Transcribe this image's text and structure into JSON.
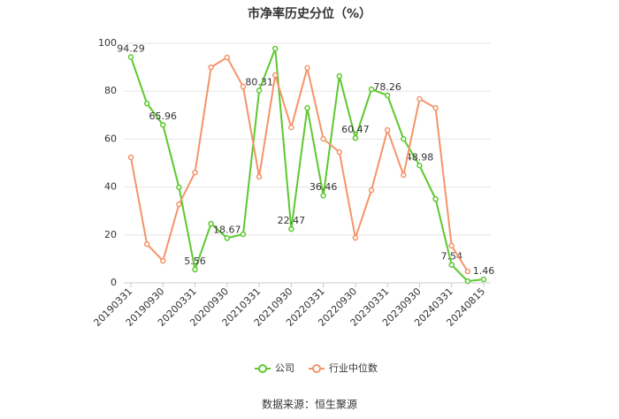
{
  "chart_data": {
    "type": "line",
    "title": "市净率历史分位（%）",
    "source": "数据来源：恒生聚源",
    "categories": [
      "20190331",
      null,
      "20190930",
      null,
      "20200331",
      null,
      "20200930",
      null,
      "20210331",
      null,
      "20210930",
      null,
      "20220331",
      null,
      "20220930",
      null,
      "20230331",
      null,
      "20230930",
      null,
      "20240331",
      null,
      "20240815"
    ],
    "series": [
      {
        "name": "公司",
        "color": "#5cc92e",
        "values": [
          94.29,
          74.9,
          65.96,
          39.9,
          5.56,
          24.7,
          18.67,
          20.3,
          80.31,
          97.8,
          22.47,
          73.0,
          36.46,
          86.3,
          60.47,
          80.8,
          78.26,
          60.1,
          48.98,
          35.0,
          7.54,
          0.7,
          1.46
        ],
        "value_labels": [
          "94.29",
          null,
          "65.96",
          null,
          "5.56",
          null,
          "18.67",
          null,
          "80.31",
          null,
          "22.47",
          null,
          "36.46",
          null,
          "60.47",
          null,
          "78.26",
          null,
          "48.98",
          null,
          "7.54",
          null,
          "1.46"
        ]
      },
      {
        "name": "行业中位数",
        "color": "#f4946a",
        "values": [
          52.4,
          16.2,
          9.2,
          32.8,
          46.1,
          90.0,
          94.1,
          81.9,
          44.3,
          86.7,
          64.9,
          89.7,
          60.1,
          54.6,
          18.8,
          38.7,
          63.8,
          45.0,
          76.8,
          73.0,
          15.5,
          4.8,
          null
        ]
      }
    ],
    "ylim": [
      0,
      100
    ],
    "yticks": [
      0,
      20,
      40,
      60,
      80,
      100
    ],
    "grid": true
  }
}
